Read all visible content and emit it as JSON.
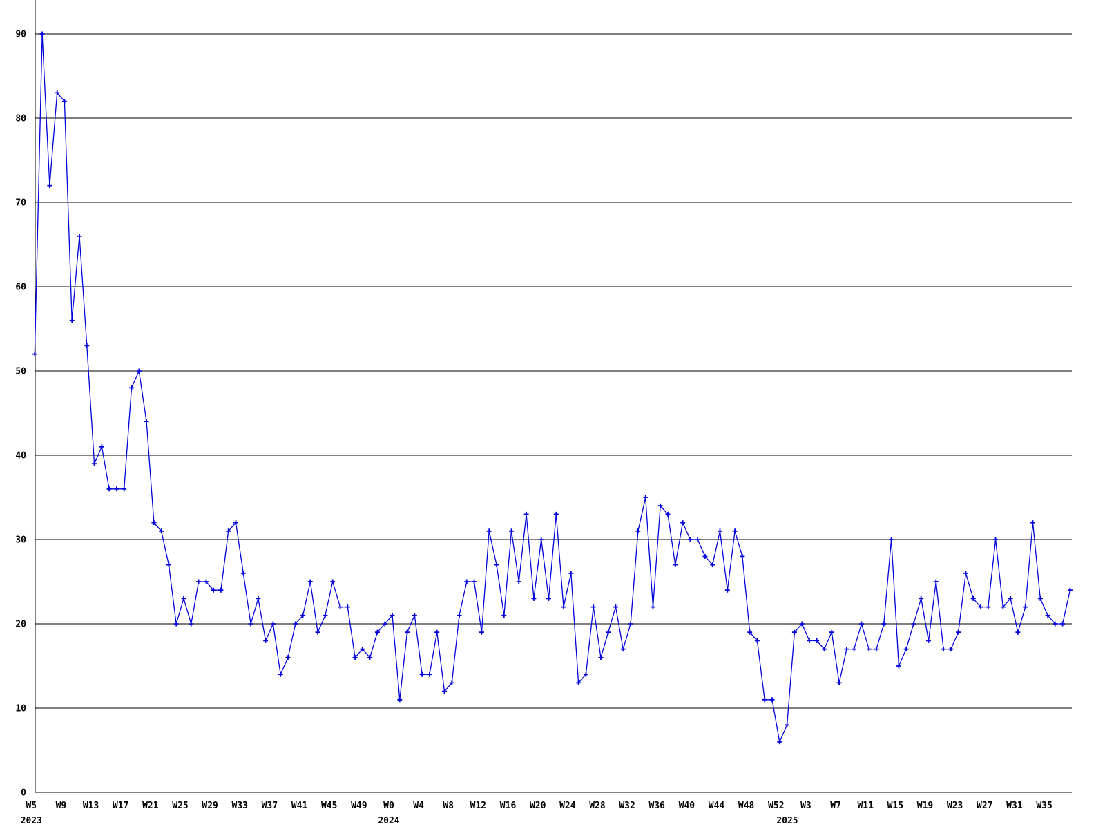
{
  "chart_data": {
    "type": "line",
    "title": "",
    "xlabel": "",
    "ylabel": "",
    "grid": true,
    "legend": "none",
    "x_unit": "ISO week",
    "ylim": [
      0,
      90
    ],
    "y_axis": {
      "ticks": [
        0,
        10,
        20,
        30,
        40,
        50,
        60,
        70,
        80,
        90
      ]
    },
    "x_axis": {
      "tick_every": 4,
      "labels": [
        "W5",
        "W9",
        "W13",
        "W17",
        "W21",
        "W25",
        "W29",
        "W33",
        "W37",
        "W41",
        "W45",
        "W49",
        "W0",
        "W4",
        "W8",
        "W12",
        "W16",
        "W20",
        "W24",
        "W28",
        "W32",
        "W36",
        "W40",
        "W44",
        "W48",
        "W52",
        "W3",
        "W7",
        "W11",
        "W15",
        "W19",
        "W23",
        "W27",
        "W31",
        "W35"
      ],
      "year_labels": [
        {
          "text": "2023",
          "at_data_index": 0
        },
        {
          "text": "2024",
          "at_data_index": 48
        },
        {
          "text": "2025",
          "at_data_index": 101.5
        }
      ]
    },
    "series_segments": [
      {
        "year": 2023,
        "start_week": 5,
        "values": [
          52,
          90,
          72,
          83,
          82,
          56,
          66,
          53,
          39,
          41,
          36,
          36,
          36,
          48,
          50,
          44,
          32,
          31,
          27,
          20,
          23,
          20,
          25,
          25,
          24,
          24,
          31,
          32,
          26,
          20,
          23,
          18,
          20,
          14,
          16,
          20,
          21,
          25,
          19,
          21,
          25,
          22,
          22,
          16,
          17,
          16,
          19,
          20
        ]
      },
      {
        "year": 2024,
        "start_week": 0,
        "values": [
          21,
          11,
          19,
          21,
          14,
          14,
          19,
          12,
          13,
          21,
          25,
          25,
          19,
          31,
          27,
          21,
          31,
          25,
          33,
          23,
          30,
          23,
          33,
          22,
          26,
          13,
          14,
          22,
          16,
          19,
          22,
          17,
          20,
          31,
          35,
          22,
          34,
          33,
          27,
          32,
          30,
          30,
          28,
          27,
          31,
          24,
          31,
          28,
          19,
          18,
          11,
          11,
          6
        ]
      },
      {
        "year": 2025,
        "start_week": 0,
        "values": [
          8,
          19,
          20,
          18,
          18,
          17,
          19,
          13,
          17,
          17,
          20,
          17,
          17,
          20,
          30,
          15,
          17,
          20,
          23,
          18,
          25,
          17,
          17,
          19,
          26,
          23,
          22,
          22,
          30,
          22,
          23,
          19,
          22,
          32,
          23,
          21,
          20,
          20,
          24
        ]
      }
    ],
    "style": {
      "line_color": "#0000dd",
      "marker_color": "#0000dd",
      "marker_shape": "plus",
      "grid_color": "#000000",
      "axis_color": "#000000",
      "text_color": "#000000",
      "background_color": "#ffffff"
    }
  }
}
